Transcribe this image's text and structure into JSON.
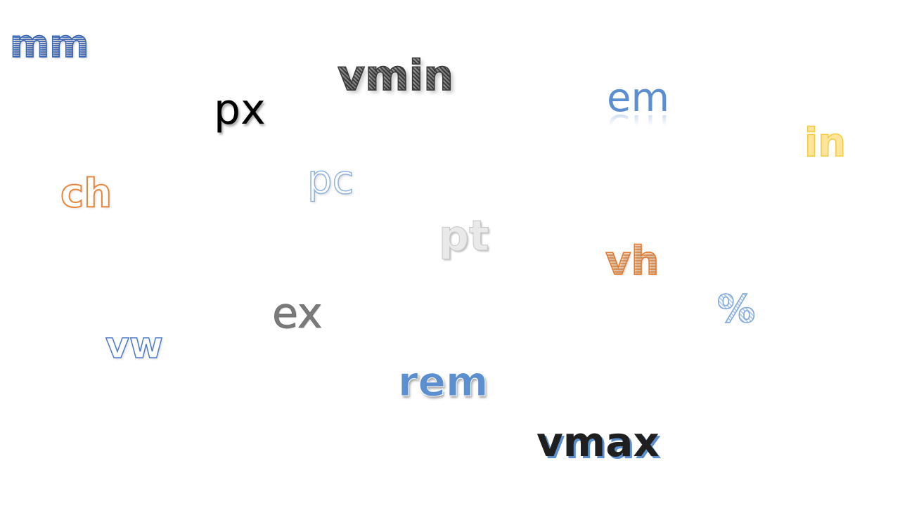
{
  "slide": {
    "background": "#ffffff",
    "units": {
      "mm": "mm",
      "vmin": "vmin",
      "px": "px",
      "em": "em",
      "in": "in",
      "ch": "ch",
      "pc": "pc",
      "pt": "pt",
      "vh": "vh",
      "percent": "%",
      "ex": "ex",
      "vw": "vw",
      "rem": "rem",
      "vmax": "vmax"
    },
    "colors": {
      "blue": "#5b8fd0",
      "dark_gray": "#3a3a3a",
      "black": "#000000",
      "yellow": "#f7c940",
      "orange": "#e9843b",
      "light_blue": "#8fb2dd",
      "light_gray": "#c8c8c8",
      "gray": "#7a7a7a"
    }
  }
}
